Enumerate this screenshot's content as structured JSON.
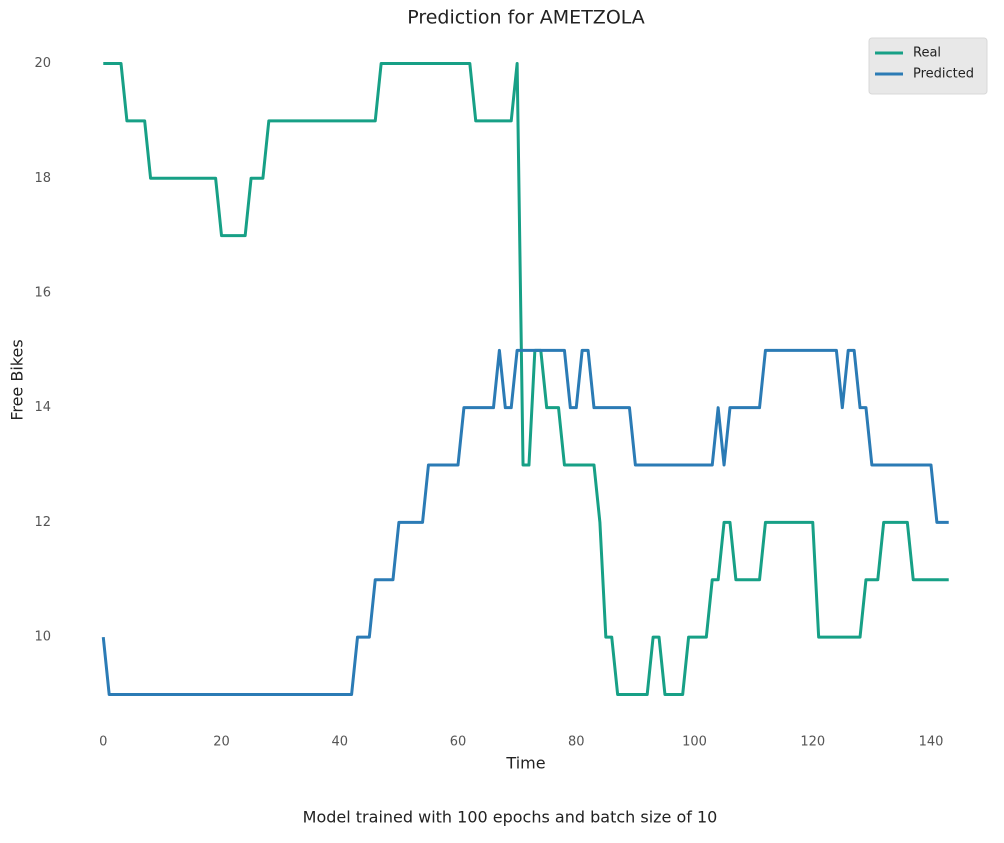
{
  "chart_data": {
    "type": "line",
    "title": "Prediction for AMETZOLA",
    "xlabel": "Time",
    "ylabel": "Free Bikes",
    "caption": "Model trained with 100 epochs and batch size of 10",
    "x": [
      0,
      1,
      2,
      3,
      4,
      5,
      6,
      7,
      8,
      9,
      10,
      11,
      12,
      13,
      14,
      15,
      16,
      17,
      18,
      19,
      20,
      21,
      22,
      23,
      24,
      25,
      26,
      27,
      28,
      29,
      30,
      31,
      32,
      33,
      34,
      35,
      36,
      37,
      38,
      39,
      40,
      41,
      42,
      43,
      44,
      45,
      46,
      47,
      48,
      49,
      50,
      51,
      52,
      53,
      54,
      55,
      56,
      57,
      58,
      59,
      60,
      61,
      62,
      63,
      64,
      65,
      66,
      67,
      68,
      69,
      70,
      71,
      72,
      73,
      74,
      75,
      76,
      77,
      78,
      79,
      80,
      81,
      82,
      83,
      84,
      85,
      86,
      87,
      88,
      89,
      90,
      91,
      92,
      93,
      94,
      95,
      96,
      97,
      98,
      99,
      100,
      101,
      102,
      103,
      104,
      105,
      106,
      107,
      108,
      109,
      110,
      111,
      112,
      113,
      114,
      115,
      116,
      117,
      118,
      119,
      120,
      121,
      122,
      123,
      124,
      125,
      126,
      127,
      128,
      129,
      130,
      131,
      132,
      133,
      134,
      135,
      136,
      137,
      138,
      139,
      140,
      141,
      142,
      143
    ],
    "series": [
      {
        "name": "Real",
        "color": "#17a086",
        "values": [
          20,
          20,
          20,
          20,
          19,
          19,
          19,
          19,
          18,
          18,
          18,
          18,
          18,
          18,
          18,
          18,
          18,
          18,
          18,
          18,
          17,
          17,
          17,
          17,
          17,
          18,
          18,
          18,
          19,
          19,
          19,
          19,
          19,
          19,
          19,
          19,
          19,
          19,
          19,
          19,
          19,
          19,
          19,
          19,
          19,
          19,
          19,
          20,
          20,
          20,
          20,
          20,
          20,
          20,
          20,
          20,
          20,
          20,
          20,
          20,
          20,
          20,
          20,
          19,
          19,
          19,
          19,
          19,
          19,
          19,
          20,
          13,
          13,
          15,
          15,
          14,
          14,
          14,
          13,
          13,
          13,
          13,
          13,
          13,
          12,
          10,
          10,
          9,
          9,
          9,
          9,
          9,
          9,
          10,
          10,
          9,
          9,
          9,
          9,
          10,
          10,
          10,
          10,
          11,
          11,
          12,
          12,
          11,
          11,
          11,
          11,
          11,
          12,
          12,
          12,
          12,
          12,
          12,
          12,
          12,
          12,
          10,
          10,
          10,
          10,
          10,
          10,
          10,
          10,
          11,
          11,
          11,
          12,
          12,
          12,
          12,
          12,
          11,
          11,
          11,
          11,
          11,
          11,
          11
        ]
      },
      {
        "name": "Predicted",
        "color": "#2b7bb5",
        "values": [
          10,
          9,
          9,
          9,
          9,
          9,
          9,
          9,
          9,
          9,
          9,
          9,
          9,
          9,
          9,
          9,
          9,
          9,
          9,
          9,
          9,
          9,
          9,
          9,
          9,
          9,
          9,
          9,
          9,
          9,
          9,
          9,
          9,
          9,
          9,
          9,
          9,
          9,
          9,
          9,
          9,
          9,
          9,
          10,
          10,
          10,
          11,
          11,
          11,
          11,
          12,
          12,
          12,
          12,
          12,
          13,
          13,
          13,
          13,
          13,
          13,
          14,
          14,
          14,
          14,
          14,
          14,
          15,
          14,
          14,
          15,
          15,
          15,
          15,
          15,
          15,
          15,
          15,
          15,
          14,
          14,
          15,
          15,
          14,
          14,
          14,
          14,
          14,
          14,
          14,
          13,
          13,
          13,
          13,
          13,
          13,
          13,
          13,
          13,
          13,
          13,
          13,
          13,
          13,
          14,
          13,
          14,
          14,
          14,
          14,
          14,
          14,
          15,
          15,
          15,
          15,
          15,
          15,
          15,
          15,
          15,
          15,
          15,
          15,
          15,
          14,
          15,
          15,
          14,
          14,
          13,
          13,
          13,
          13,
          13,
          13,
          13,
          13,
          13,
          13,
          13,
          12,
          12,
          12
        ]
      }
    ],
    "xlim": [
      -7.15,
      150.15
    ],
    "ylim": [
      8.45,
      20.55
    ],
    "xticks": [
      0,
      20,
      40,
      60,
      80,
      100,
      120,
      140
    ],
    "yticks": [
      10,
      12,
      14,
      16,
      18,
      20
    ],
    "legend": "upper right"
  }
}
